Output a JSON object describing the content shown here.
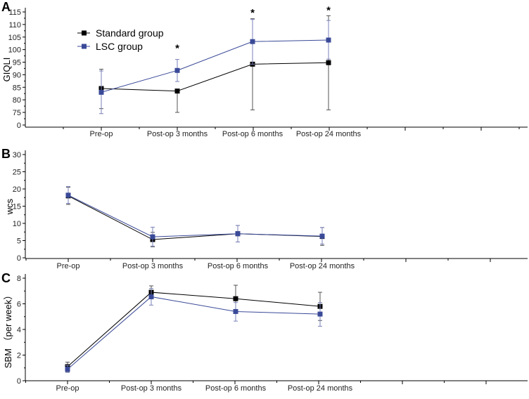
{
  "chart_data": [
    {
      "type": "line",
      "panel_label": "A",
      "ylabel": "GIQLI",
      "xlabel": "",
      "categories": [
        "Pre-op",
        "Post-op 3 months",
        "Post-op 6 months",
        "Post-op 24 months"
      ],
      "yticks": [
        "0",
        "75",
        "80",
        "85",
        "90",
        "95",
        "100",
        "105",
        "110",
        "115"
      ],
      "ylim": [
        72,
        115
      ],
      "axis_break": true,
      "legend": {
        "placement": "top-left",
        "entries": [
          "Standard group",
          "LSC  group"
        ]
      },
      "annotations": [
        {
          "text": "*",
          "category": "Post-op 3 months",
          "y": 101.5
        },
        {
          "text": "*",
          "category": "Post-op 6 months",
          "y": 115.5
        },
        {
          "text": "*",
          "category": "Post-op 24 months",
          "y": 116.5
        }
      ],
      "series": [
        {
          "name": "Standard group",
          "color": "#000000",
          "values": [
            84.5,
            83.5,
            94.2,
            94.8
          ],
          "err": [
            [
              76.5,
              92.2
            ],
            [
              75,
              83.5
            ],
            [
              76,
              112.3
            ],
            [
              76,
              113.5
            ]
          ]
        },
        {
          "name": "LSC  group",
          "color": "#3a4a98",
          "values": [
            83,
            91.7,
            103.2,
            103.8
          ],
          "err": [
            [
              74.5,
              91.5
            ],
            [
              87.3,
              96.1
            ],
            [
              94.2,
              112
            ],
            [
              96.2,
              111.6
            ]
          ]
        }
      ]
    },
    {
      "type": "line",
      "panel_label": "B",
      "ylabel": "wcs",
      "xlabel": "",
      "categories": [
        "Pre-op",
        "Post-op 3 months",
        "Post-op 6 months",
        "Post-op 24 months"
      ],
      "yticks": [
        "0",
        "5",
        "10",
        "15",
        "20",
        "25",
        "30"
      ],
      "ylim": [
        0,
        30
      ],
      "series": [
        {
          "name": "Standard group",
          "color": "#000000",
          "values": [
            18,
            5.3,
            7,
            6.2
          ],
          "err": [
            [
              15.5,
              20.5
            ],
            [
              3.2,
              7.4
            ],
            [
              4.6,
              9.4
            ],
            [
              3.6,
              8.8
            ]
          ]
        },
        {
          "name": "LSC  group",
          "color": "#3a4a98",
          "values": [
            18.2,
            6.1,
            7,
            6.3
          ],
          "err": [
            [
              15.8,
              20.7
            ],
            [
              3.4,
              8.9
            ],
            [
              4.6,
              9.4
            ],
            [
              4,
              8.8
            ]
          ]
        }
      ]
    },
    {
      "type": "line",
      "panel_label": "C",
      "ylabel": "SBM （per week）",
      "xlabel": "",
      "categories": [
        "Pre-op",
        "Post-op 3 months",
        "Post-op 6 months",
        "Post-op 24 months"
      ],
      "yticks": [
        "0",
        "2",
        "4",
        "6",
        "8"
      ],
      "ylim": [
        0,
        8
      ],
      "series": [
        {
          "name": "Standard group",
          "color": "#000000",
          "values": [
            1.1,
            6.9,
            6.4,
            5.8
          ],
          "err": [
            [
              0.7,
              1.45
            ],
            [
              6.4,
              7.4
            ],
            [
              5.4,
              7.45
            ],
            [
              4.7,
              6.9
            ]
          ]
        },
        {
          "name": "LSC  group",
          "color": "#3a4a98",
          "values": [
            0.9,
            6.55,
            5.4,
            5.2
          ],
          "err": [
            [
              0.65,
              1.2
            ],
            [
              5.9,
              7.2
            ],
            [
              4.65,
              6.1
            ],
            [
              4.25,
              6.1
            ]
          ]
        }
      ]
    }
  ]
}
